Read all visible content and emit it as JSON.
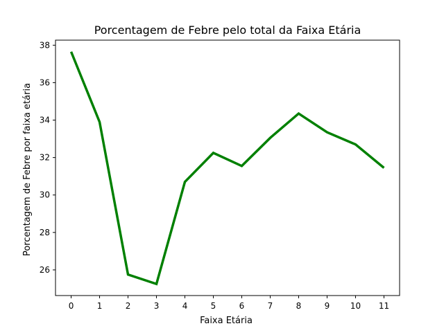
{
  "chart_data": {
    "type": "line",
    "title": "Porcentagem de Febre pelo total da Faixa Etária",
    "xlabel": "Faixa Etária",
    "ylabel": "Porcentagem de Febre por faixa etária",
    "x": [
      0,
      1,
      2,
      3,
      4,
      5,
      6,
      7,
      8,
      9,
      10,
      11
    ],
    "series": [
      {
        "values": [
          37.65,
          33.9,
          25.75,
          25.25,
          30.7,
          32.25,
          31.55,
          33.05,
          34.35,
          33.35,
          32.7,
          31.45
        ],
        "color": "#008000"
      }
    ],
    "xticks": [
      "0",
      "1",
      "2",
      "3",
      "4",
      "5",
      "6",
      "7",
      "8",
      "9",
      "10",
      "11"
    ],
    "yticks": [
      "26",
      "28",
      "30",
      "32",
      "34",
      "36",
      "38"
    ],
    "xlim": [
      -0.55,
      11.55
    ],
    "ylim": [
      24.63,
      38.27
    ],
    "grid": false,
    "legend": "none"
  }
}
